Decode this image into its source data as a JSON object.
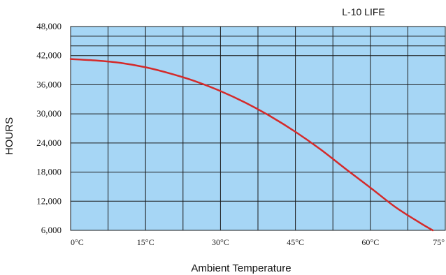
{
  "chart_data": {
    "type": "line",
    "title": "L-10  LIFE",
    "xlabel": "Ambient Temperature",
    "ylabel": "HOURS",
    "xlim": [
      0,
      75
    ],
    "ylim": [
      6000,
      48000
    ],
    "grid": true,
    "colors": {
      "plot_background": "#a6d6f5",
      "grid": "#1a1a1a",
      "series": "#d42a2a"
    },
    "x_ticks": [
      0,
      15,
      30,
      45,
      60,
      75
    ],
    "x_tick_labels": [
      "0°C",
      "15°C",
      "30°C",
      "45°C",
      "60°C",
      "75°"
    ],
    "y_ticks": [
      6000,
      12000,
      18000,
      24000,
      30000,
      36000,
      42000,
      48000
    ],
    "y_tick_labels": [
      "6,000",
      "12,000",
      "18,000",
      "24,000",
      "30,000",
      "36,000",
      "42,000",
      "48,000"
    ],
    "series": [
      {
        "name": "",
        "x": [
          0,
          5,
          10,
          15,
          20,
          25,
          30,
          35,
          40,
          45,
          50,
          55,
          60,
          65,
          70,
          72.5
        ],
        "values": [
          41300,
          41000,
          40500,
          39600,
          38300,
          36700,
          34700,
          32300,
          29500,
          26300,
          22700,
          18700,
          14800,
          10800,
          7500,
          6000
        ]
      }
    ]
  }
}
